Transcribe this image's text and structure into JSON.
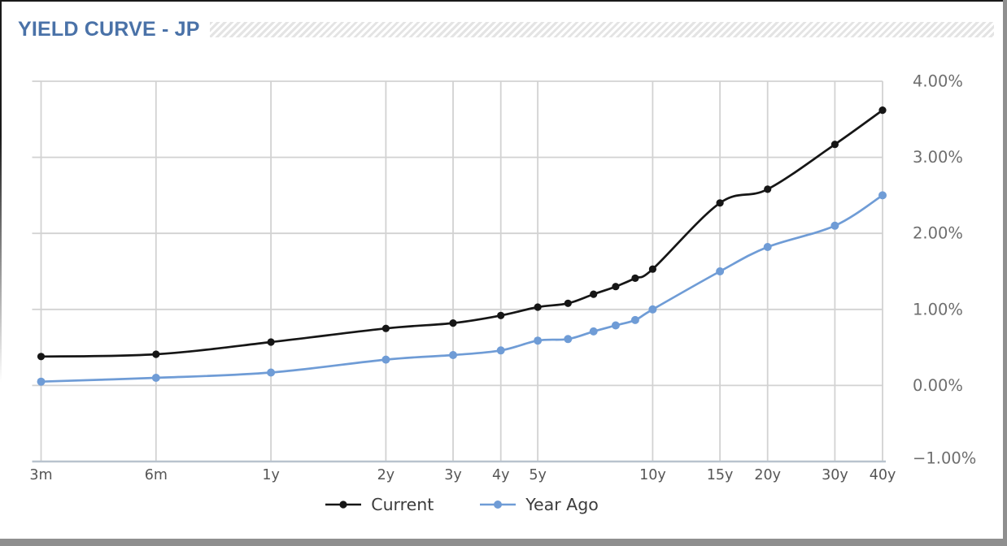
{
  "window": {
    "title": "YIELD CURVE - JP"
  },
  "colors": {
    "title": "#4a72a8",
    "current_series": "#161616",
    "year_ago_series": "#6f9cd6",
    "gridline": "#d2d2d2",
    "axis_line": "#b9c3ce",
    "x_tick_label": "#565656",
    "y_tick_label": "#6e6e6e",
    "legend_text": "#3c3c3c",
    "frame_dark": "#1a1a1a",
    "frame_gray": "#8f8f8f"
  },
  "legend": {
    "items": [
      {
        "label": "Current",
        "color": "#161616"
      },
      {
        "label": "Year Ago",
        "color": "#6f9cd6"
      }
    ]
  },
  "chart_data": {
    "type": "line",
    "title": "YIELD CURVE - JP",
    "x_scale": "log",
    "categories": [
      "3m",
      "6m",
      "1y",
      "2y",
      "3y",
      "4y",
      "5y",
      "6y",
      "7y",
      "8y",
      "9y",
      "10y",
      "15y",
      "20y",
      "30y",
      "40y"
    ],
    "maturities_years": [
      0.25,
      0.5,
      1,
      2,
      3,
      4,
      5,
      6,
      7,
      8,
      9,
      10,
      15,
      20,
      30,
      40
    ],
    "series": [
      {
        "name": "Current",
        "color": "#161616",
        "marker_radius": 4.6,
        "values": [
          0.38,
          0.41,
          0.57,
          0.75,
          0.82,
          0.92,
          1.03,
          1.08,
          1.2,
          1.3,
          1.41,
          1.53,
          2.4,
          2.58,
          3.17,
          3.62
        ]
      },
      {
        "name": "Year Ago",
        "color": "#6f9cd6",
        "marker_radius": 5.0,
        "values": [
          0.05,
          0.1,
          0.17,
          0.34,
          0.4,
          0.46,
          0.59,
          0.61,
          0.71,
          0.79,
          0.86,
          1.0,
          1.5,
          1.82,
          2.1,
          2.5
        ]
      }
    ],
    "x_ticklabels": [
      "3m",
      "6m",
      "1y",
      "2y",
      "3y",
      "4y",
      "5y",
      "10y",
      "15y",
      "20y",
      "30y",
      "40y"
    ],
    "x_tick_years": [
      0.25,
      0.5,
      1,
      2,
      3,
      4,
      5,
      10,
      15,
      20,
      30,
      40
    ],
    "y_ticklabels": [
      "4.00%",
      "3.00%",
      "2.00%",
      "1.00%",
      "0.00%",
      "−1.00%"
    ],
    "y_tick_values": [
      4,
      3,
      2,
      1,
      0,
      -1
    ],
    "ylim": [
      -1,
      4
    ],
    "ylabel_side": "right",
    "grid": true,
    "legend_position": "bottom",
    "smooth_lines": true
  }
}
